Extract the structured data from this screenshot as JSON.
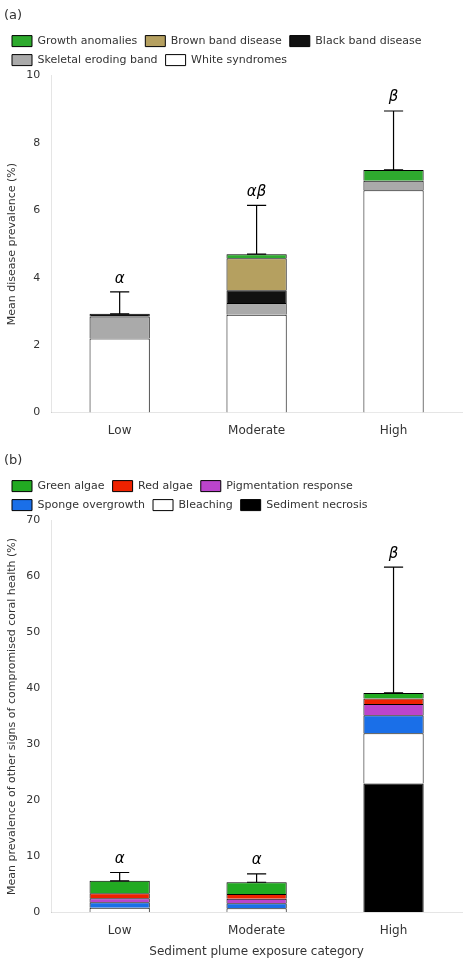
{
  "chart_data": [
    {
      "type": "bar",
      "stacked": true,
      "title": "(a)",
      "categories": [
        "Low",
        "Moderate",
        "High"
      ],
      "series": [
        {
          "name": "White syndromes",
          "color": "#ffffff",
          "values": [
            2.2,
            2.9,
            6.6
          ]
        },
        {
          "name": "Skeletal eroding band",
          "color": "#aaaaaa",
          "values": [
            0.65,
            0.35,
            0.28
          ]
        },
        {
          "name": "Black band disease",
          "color": "#111111",
          "values": [
            0.08,
            0.38,
            0.0
          ]
        },
        {
          "name": "Brown band disease",
          "color": "#b5a060",
          "values": [
            0.0,
            0.95,
            0.0
          ]
        },
        {
          "name": "Growth anomalies",
          "color": "#2eaa2e",
          "values": [
            0.0,
            0.12,
            0.32
          ]
        }
      ],
      "bar_totals": [
        2.93,
        4.7,
        7.2
      ],
      "error_hi": [
        0.65,
        1.45,
        1.75
      ],
      "ylabel": "Mean disease prevalence (%)",
      "ylim": [
        0,
        10
      ],
      "yticks": [
        0,
        2,
        4,
        6,
        8,
        10
      ],
      "grid": false,
      "legend": "upper left",
      "annotations": [
        {
          "text": "α",
          "x": "Low",
          "y": 3.7
        },
        {
          "text": "αβ",
          "x": "Moderate",
          "y": 6.3
        },
        {
          "text": "β",
          "x": "High",
          "y": 9.1
        }
      ]
    },
    {
      "type": "bar",
      "stacked": true,
      "title": "(b)",
      "categories": [
        "Low",
        "Moderate",
        "High"
      ],
      "series": [
        {
          "name": "Sediment necrosis",
          "color": "#000000",
          "values": [
            0.0,
            0.0,
            23.0
          ]
        },
        {
          "name": "Bleaching",
          "color": "#ffffff",
          "values": [
            0.8,
            0.7,
            9.0
          ]
        },
        {
          "name": "Sponge overgrowth",
          "color": "#1a6fe8",
          "values": [
            1.0,
            0.9,
            3.2
          ]
        },
        {
          "name": "Pigmentation response",
          "color": "#bb44cc",
          "values": [
            0.7,
            0.8,
            2.0
          ]
        },
        {
          "name": "Red algae",
          "color": "#ee2200",
          "values": [
            0.9,
            0.85,
            1.0
          ]
        },
        {
          "name": "Green algae",
          "color": "#22aa22",
          "values": [
            2.2,
            2.1,
            1.0
          ]
        }
      ],
      "bar_totals": [
        5.6,
        5.35,
        39.2
      ],
      "error_hi": [
        1.5,
        1.5,
        22.5
      ],
      "ylabel": "Mean prevalence of other signs of compromised coral health (%)",
      "xlabel": "Sediment plume exposure category",
      "ylim": [
        0,
        70
      ],
      "yticks": [
        0,
        10,
        20,
        30,
        40,
        50,
        60,
        70
      ],
      "grid": false,
      "legend": "upper left",
      "annotations": [
        {
          "text": "α",
          "x": "Low",
          "y": 8.0
        },
        {
          "text": "α",
          "x": "Moderate",
          "y": 7.8
        },
        {
          "text": "β",
          "x": "High",
          "y": 62.5
        }
      ]
    }
  ]
}
